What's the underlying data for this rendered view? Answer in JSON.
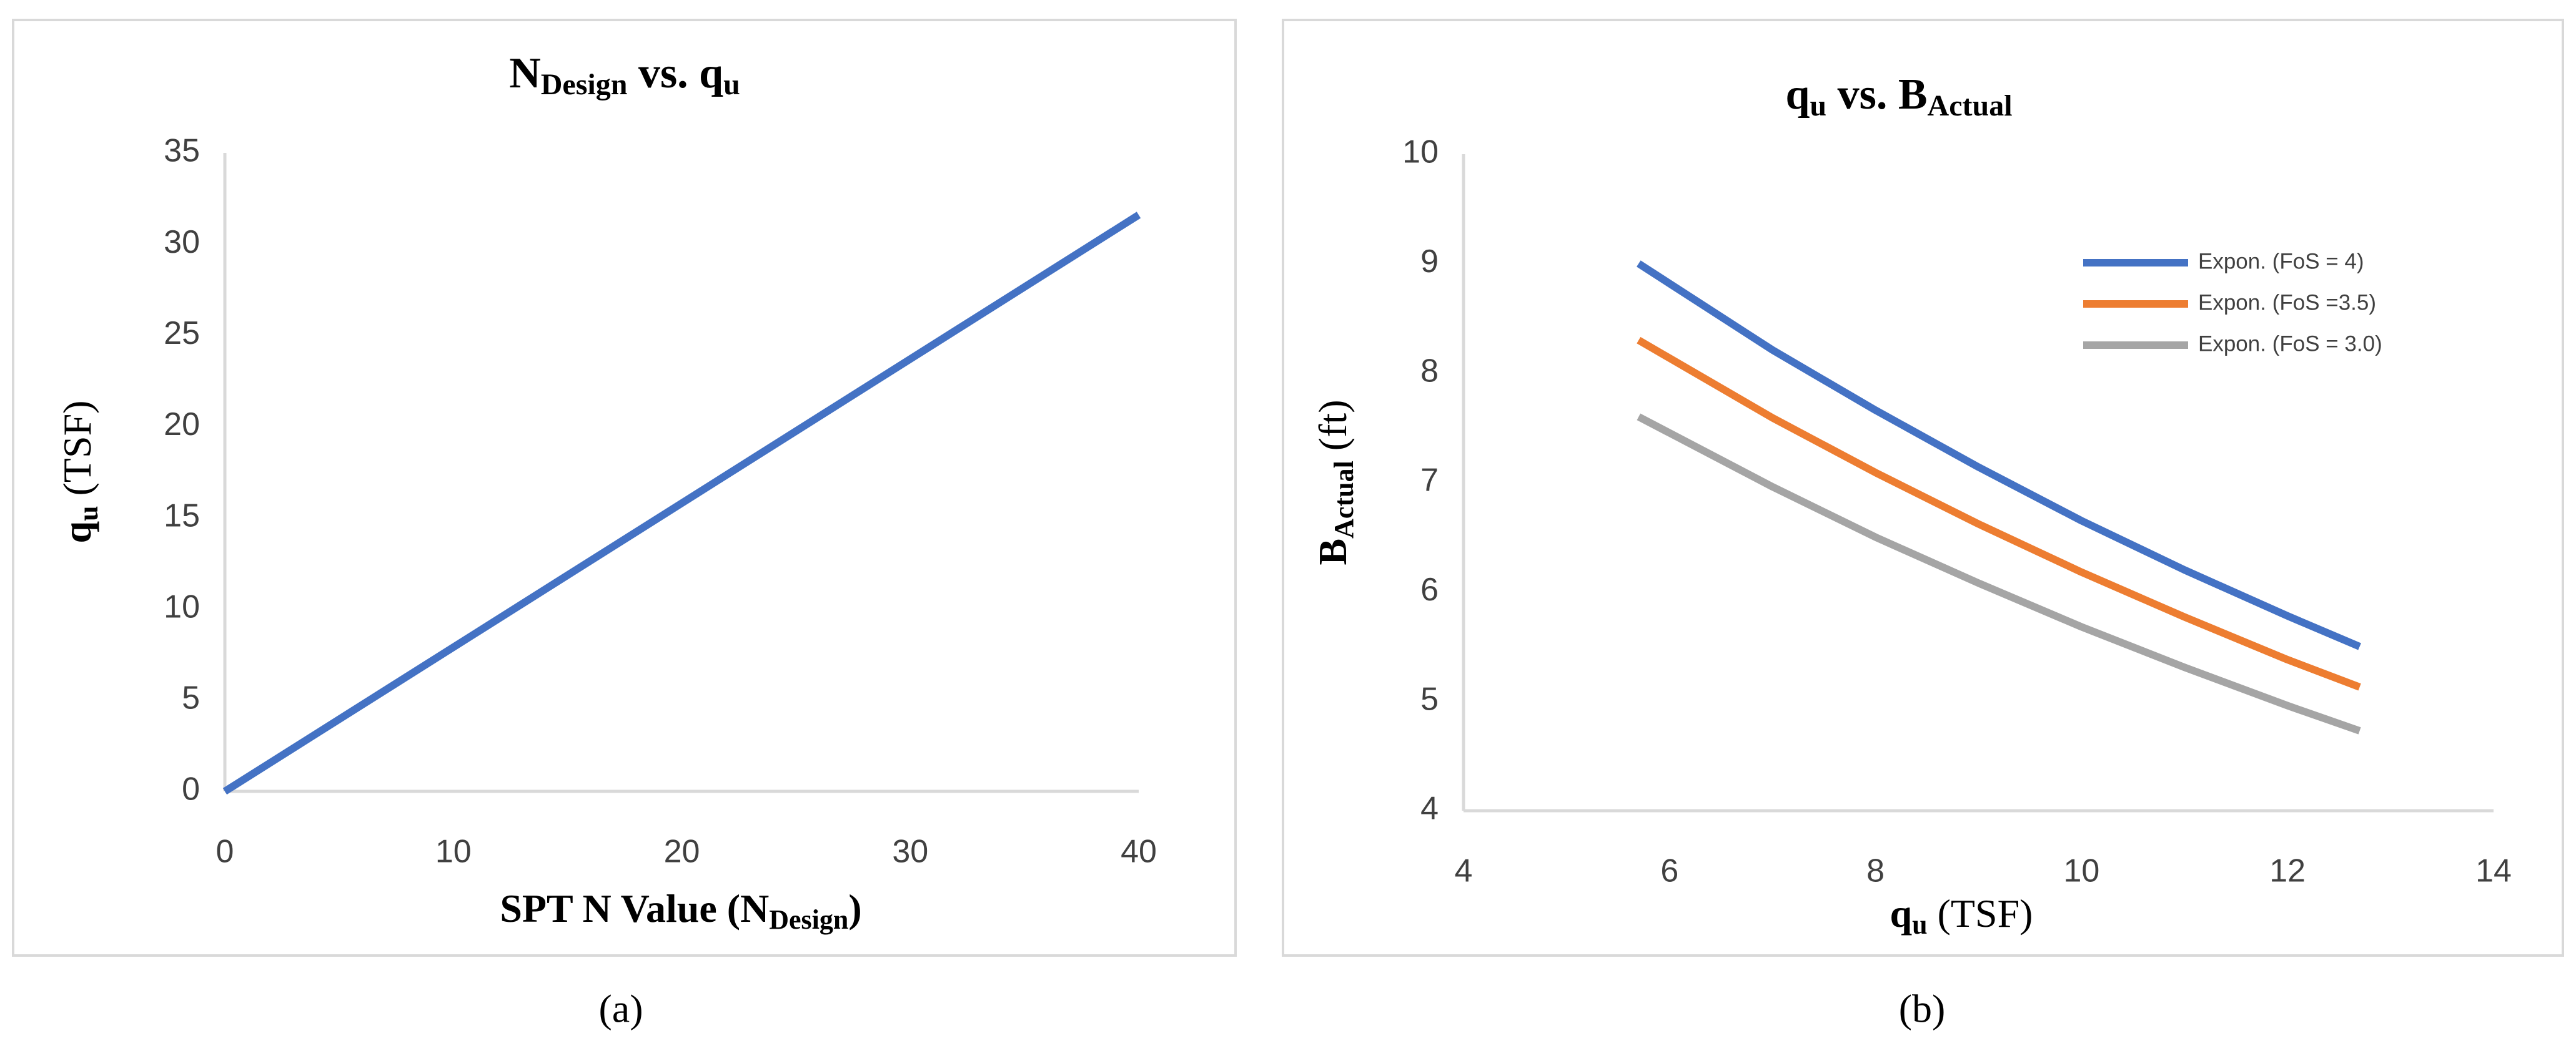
{
  "chart_data": [
    {
      "type": "line",
      "title": [
        "N",
        "Design",
        " vs. q",
        "u"
      ],
      "x_label": [
        "SPT N Value (N",
        "Design",
        ")"
      ],
      "y_label": [
        "q",
        "u",
        " (TSF)"
      ],
      "x": [
        0,
        40
      ],
      "values": [
        0,
        31.6
      ],
      "color": "#4472c4",
      "xlim": [
        0,
        40
      ],
      "xticks": [
        0,
        10,
        20,
        30,
        40
      ],
      "ylim": [
        0,
        35
      ],
      "yticks": [
        0,
        5,
        10,
        15,
        20,
        25,
        30,
        35
      ],
      "grid": false
    },
    {
      "type": "line",
      "title": [
        "q",
        "u",
        " vs. B",
        "Actual"
      ],
      "x_label": [
        "q",
        "u",
        " (TSF)"
      ],
      "y_label": [
        "B",
        "Actual",
        " (ft)"
      ],
      "x": [
        5.7,
        7,
        8,
        9,
        10,
        11,
        12,
        12.7
      ],
      "series": [
        {
          "name": "Expon. (FoS = 4)",
          "color": "#4472c4",
          "values": [
            9.0,
            8.21,
            7.66,
            7.14,
            6.65,
            6.2,
            5.78,
            5.5
          ]
        },
        {
          "name": "Expon. (FoS =3.5)",
          "color": "#ed7d31",
          "values": [
            8.3,
            7.59,
            7.09,
            6.62,
            6.18,
            5.77,
            5.38,
            5.13
          ]
        },
        {
          "name": "Expon. (FoS = 3.0)",
          "color": "#a5a5a5",
          "values": [
            7.6,
            6.96,
            6.5,
            6.08,
            5.68,
            5.31,
            4.96,
            4.73
          ]
        }
      ],
      "xlim": [
        4,
        14
      ],
      "xticks": [
        4,
        6,
        8,
        10,
        12,
        14
      ],
      "ylim": [
        4,
        10
      ],
      "yticks": [
        4,
        5,
        6,
        7,
        8,
        9,
        10
      ],
      "grid": false,
      "legend": "upper-right"
    }
  ],
  "captions": [
    "(a)",
    "(b)"
  ]
}
